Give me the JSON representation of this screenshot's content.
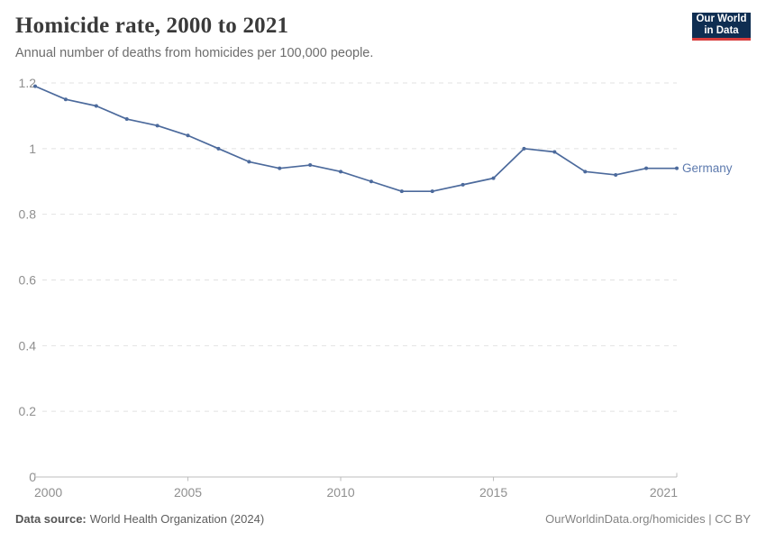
{
  "header": {
    "title": "Homicide rate, 2000 to 2021",
    "subtitle": "Annual number of deaths from homicides per 100,000 people.",
    "logo": {
      "line1": "Our World",
      "line2": "in Data",
      "bg_color": "#0f2e52",
      "accent_color": "#d83c3c"
    }
  },
  "chart_data": {
    "type": "line",
    "title": "Homicide rate, 2000 to 2021",
    "subtitle": "Annual number of deaths from homicides per 100,000 people.",
    "xlabel": "",
    "ylabel": "",
    "x": [
      2000,
      2001,
      2002,
      2003,
      2004,
      2005,
      2006,
      2007,
      2008,
      2009,
      2010,
      2011,
      2012,
      2013,
      2014,
      2015,
      2016,
      2017,
      2018,
      2019,
      2020,
      2021
    ],
    "series": [
      {
        "name": "Germany",
        "color": "#4C6A9C",
        "values": [
          1.19,
          1.15,
          1.13,
          1.09,
          1.07,
          1.04,
          1.0,
          0.96,
          0.94,
          0.95,
          0.93,
          0.9,
          0.87,
          0.87,
          0.89,
          0.91,
          1.0,
          0.99,
          0.93,
          0.92,
          0.94,
          0.94
        ]
      }
    ],
    "ylim": [
      0,
      1.2
    ],
    "yticks": [
      0,
      0.2,
      0.4,
      0.6,
      0.8,
      1,
      1.2
    ],
    "xticks": [
      2000,
      2005,
      2010,
      2015,
      2021
    ],
    "grid": "horizontal-dashed",
    "legend_position": "end-of-line",
    "colors": {
      "grid": "#e2e2e2",
      "axis": "#bcbcbc",
      "tick_label": "#8f8f8f",
      "entity_label": "#5d7aae"
    }
  },
  "footer": {
    "source_label": "Data source:",
    "source_text": "World Health Organization (2024)",
    "citation": "OurWorldinData.org/homicides | CC BY"
  }
}
